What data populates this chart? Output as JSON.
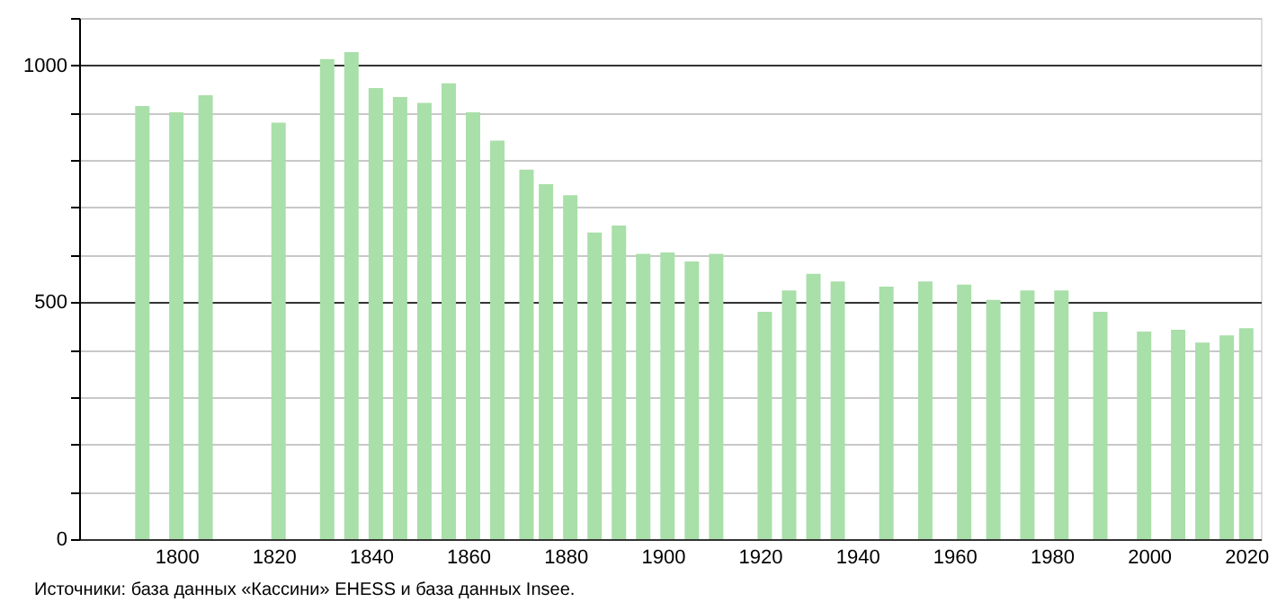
{
  "chart_data": {
    "type": "bar",
    "color": "#a9dfa9",
    "grid": "y",
    "x": [
      1793,
      1800,
      1806,
      1821,
      1831,
      1836,
      1841,
      1846,
      1851,
      1856,
      1861,
      1866,
      1872,
      1876,
      1881,
      1886,
      1891,
      1896,
      1901,
      1906,
      1911,
      1921,
      1926,
      1931,
      1936,
      1946,
      1954,
      1962,
      1968,
      1975,
      1982,
      1990,
      1999,
      2006,
      2011,
      2016,
      2020
    ],
    "values": [
      914,
      901,
      937,
      879,
      1013,
      1028,
      952,
      933,
      921,
      962,
      901,
      841,
      780,
      749,
      726,
      647,
      662,
      602,
      605,
      586,
      602,
      480,
      525,
      560,
      544,
      533,
      544,
      537,
      505,
      525,
      525,
      480,
      438,
      442,
      415,
      430,
      445
    ],
    "xlim": [
      1780,
      2023
    ],
    "xticks": [
      1800,
      1820,
      1840,
      1860,
      1880,
      1900,
      1920,
      1940,
      1960,
      1980,
      2000,
      2020
    ],
    "ylim": [
      0,
      1100
    ],
    "yticks": [
      0,
      {
        "value": 100,
        "label": null
      },
      {
        "value": 200,
        "label": null
      },
      {
        "value": 300,
        "label": null
      },
      {
        "value": 400,
        "label": null
      },
      500,
      {
        "value": 600,
        "label": null
      },
      {
        "value": 700,
        "label": null
      },
      {
        "value": 800,
        "label": null
      },
      {
        "value": 900,
        "label": null
      },
      1000,
      {
        "value": 1100,
        "label": null
      }
    ],
    "annotations": [
      "Источники: база данных «Кассини» EHESS и база данных Insee."
    ]
  }
}
